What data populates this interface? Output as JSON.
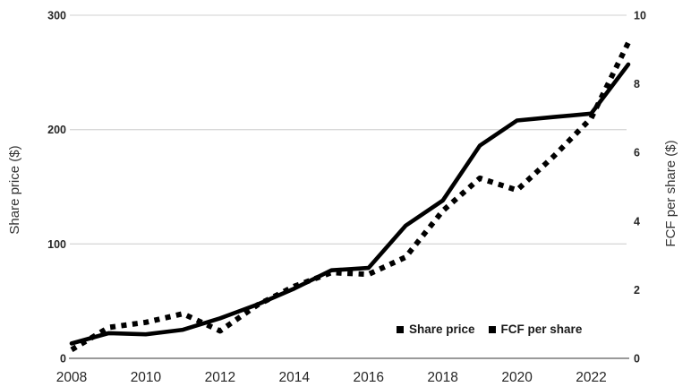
{
  "chart": {
    "left_axis": {
      "title": "Share price ($)",
      "ticks": [
        "0",
        "100",
        "200",
        "300"
      ]
    },
    "right_axis": {
      "title": "FCF per share ($)",
      "ticks": [
        "0",
        "2",
        "4",
        "6",
        "8",
        "10"
      ]
    },
    "x_axis": {
      "ticks": [
        "2008",
        "2010",
        "2012",
        "2014",
        "2016",
        "2018",
        "2020",
        "2022"
      ]
    },
    "legend": {
      "items": [
        {
          "marker": "black-square",
          "label": "Share price"
        },
        {
          "marker": "black-square",
          "label": "FCF per share"
        }
      ]
    },
    "colors": {
      "series": "#000000",
      "grid": "#d9d9d9",
      "axis_line": "#8c8c8c",
      "tick_text": "#262626",
      "background": "#ffffff"
    }
  },
  "chart_data": {
    "type": "line",
    "title": "",
    "x": [
      2008,
      2009,
      2010,
      2011,
      2012,
      2013,
      2014,
      2015,
      2016,
      2017,
      2018,
      2019,
      2020,
      2021,
      2022,
      2023
    ],
    "xlim": [
      2008,
      2023
    ],
    "x_tick_step": 2,
    "grid": "horizontal-light",
    "legend_position": "inside-bottom-right",
    "left_ylabel": "Share price ($)",
    "right_ylabel": "FCF per share ($)",
    "left_ylim": [
      0,
      300
    ],
    "right_ylim": [
      0,
      10
    ],
    "series": [
      {
        "name": "Share price",
        "axis": "left",
        "line_style": "solid",
        "color": "#000000",
        "values": [
          13,
          22,
          21,
          25,
          35,
          47,
          61,
          77,
          79,
          116,
          138,
          186,
          208,
          211,
          214,
          257
        ]
      },
      {
        "name": "FCF per share",
        "axis": "right",
        "line_style": "dotted",
        "color": "#000000",
        "values": [
          0.25,
          0.9,
          1.05,
          1.3,
          0.8,
          1.55,
          2.1,
          2.5,
          2.45,
          2.95,
          4.3,
          5.25,
          4.9,
          5.9,
          7.0,
          9.2
        ]
      }
    ]
  }
}
